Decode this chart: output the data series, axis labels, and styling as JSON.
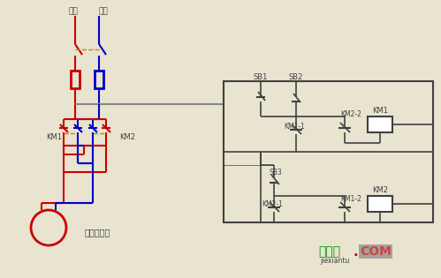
{
  "bg_color": "#e8e4d0",
  "red": "#cc0000",
  "blue": "#0000cc",
  "dark": "#404040",
  "gray": "#888888",
  "green": "#009900",
  "orange": "#cc8800",
  "label_正极": "正极",
  "label_负极": "负极",
  "label_KM1": "KM1",
  "label_KM2": "KM2",
  "label_motor": "直流电动机",
  "label_SB1": "SB1",
  "label_SB2": "SB2",
  "label_SB3": "SB3",
  "label_KM1_1": "KM1-1",
  "label_KM2_2": "KM2-2",
  "label_KM1_coil": "KM1",
  "label_KM2_1": "KM2-1",
  "label_KM1_2": "KM1-2",
  "label_KM2_coil": "KM2",
  "watermark_jx": "接线图",
  "watermark_dot": ".",
  "watermark_com": "COM",
  "watermark_sub": "jiexiantu"
}
